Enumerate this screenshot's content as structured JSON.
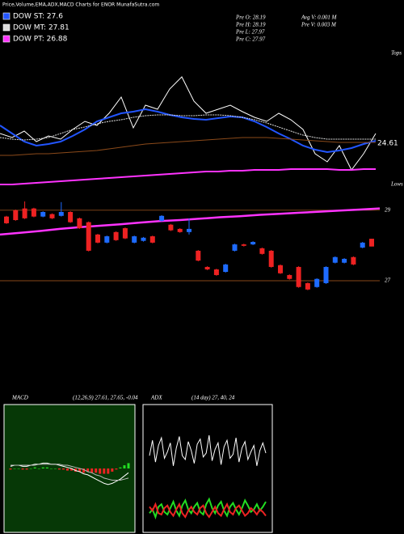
{
  "header": {
    "title": "Price,Volume,EMA,ADX,MACD Charts for ENOR MunafaSutra.com",
    "stats": [
      "Pre  O: 28.19",
      "Pre  H: 28.19",
      "Pre  L: 27.97",
      "Pre  C: 27.97",
      "Avg V: 0.001 M",
      "Pre  V: 0.003 M"
    ]
  },
  "chart_data": [
    {
      "type": "line",
      "ylim": [
        -15,
        140
      ],
      "annotation": "24.61",
      "tops_label": "Tops",
      "lows_label": "Lows",
      "series": [
        {
          "color": "#ffffff",
          "values": [
            55,
            50,
            58,
            45,
            52,
            48,
            60,
            70,
            65,
            80,
            100,
            62,
            90,
            85,
            110,
            125,
            95,
            80,
            85,
            90,
            82,
            75,
            70,
            80,
            72,
            60,
            30,
            20,
            40,
            10,
            30,
            55
          ]
        },
        {
          "name": "DOW ST: 27.6",
          "color": "#2255ff",
          "values": [
            65,
            55,
            45,
            40,
            42,
            45,
            52,
            60,
            70,
            75,
            80,
            82,
            85,
            82,
            78,
            75,
            73,
            72,
            74,
            76,
            75,
            70,
            63,
            55,
            48,
            40,
            35,
            32,
            34,
            37,
            42,
            46
          ]
        },
        {
          "name": "DOW MT: 27.81",
          "color": "#dddddd",
          "values": [
            50,
            48,
            47,
            48,
            50,
            55,
            60,
            63,
            67,
            70,
            72,
            75,
            77,
            78,
            78,
            77,
            77,
            78,
            78,
            77,
            75,
            72,
            68,
            63,
            58,
            53,
            50,
            48,
            48,
            48,
            48,
            48
          ]
        },
        {
          "color": "#8b4a1a",
          "values": [
            28,
            28,
            29,
            30,
            30,
            31,
            32,
            33,
            34,
            36,
            38,
            40,
            42,
            43,
            44,
            45,
            46,
            47,
            48,
            49,
            50,
            50,
            50,
            49,
            48,
            47,
            46,
            45,
            44,
            44,
            44,
            44
          ]
        },
        {
          "name": "DOW PT: 26.88",
          "color": "#ff33ff",
          "values": [
            -8,
            -8,
            -7,
            -6,
            -5,
            -4,
            -3,
            -2,
            -1,
            0,
            1,
            2,
            3,
            4,
            5,
            6,
            7,
            8,
            8,
            9,
            9,
            10,
            10,
            10,
            11,
            11,
            11,
            11,
            10,
            10,
            11,
            11
          ]
        }
      ]
    },
    {
      "type": "candlestick",
      "ylim": [
        26.47,
        29.57
      ],
      "yticks": [
        29,
        27
      ],
      "up_color": "#1e6bff",
      "down_color": "#ee2222",
      "open": [
        28.82,
        29.0,
        29.05,
        29.05,
        28.82,
        28.89,
        28.84,
        28.95,
        28.77,
        28.66,
        28.31,
        28.08,
        28.38,
        28.49,
        28.08,
        28.13,
        28.26,
        28.7,
        28.59,
        28.47,
        28.38,
        27.85,
        27.39,
        27.32,
        27.25,
        27.85,
        28.03,
        28.03,
        27.92,
        27.85,
        27.44,
        27.16,
        27.39,
        26.93,
        26.82,
        26.93,
        27.51,
        27.51,
        27.67,
        27.94,
        28.19
      ],
      "high": [
        28.84,
        29.02,
        29.25,
        29.07,
        28.97,
        28.91,
        29.23,
        28.97,
        28.79,
        28.68,
        28.33,
        28.28,
        28.4,
        28.51,
        28.28,
        28.24,
        28.28,
        28.86,
        28.61,
        28.49,
        28.77,
        27.87,
        27.41,
        27.34,
        27.48,
        28.05,
        28.05,
        28.12,
        27.94,
        27.87,
        27.46,
        27.18,
        27.41,
        26.95,
        27.07,
        27.41,
        27.69,
        27.64,
        27.69,
        28.1,
        28.19
      ],
      "low": [
        28.61,
        28.7,
        28.75,
        28.8,
        28.8,
        28.75,
        28.82,
        28.64,
        28.47,
        27.83,
        28.06,
        28.06,
        28.13,
        28.18,
        28.06,
        28.11,
        28.06,
        28.68,
        28.41,
        28.36,
        28.31,
        27.55,
        27.3,
        27.14,
        27.23,
        27.83,
        27.97,
        28.01,
        27.74,
        27.37,
        27.19,
        27.03,
        26.8,
        26.73,
        26.8,
        26.91,
        27.49,
        27.49,
        27.44,
        27.92,
        27.97
      ],
      "close": [
        28.63,
        28.72,
        28.77,
        28.82,
        28.95,
        28.77,
        28.95,
        28.66,
        28.49,
        27.85,
        28.08,
        28.26,
        28.15,
        28.2,
        28.26,
        28.22,
        28.08,
        28.84,
        28.43,
        28.38,
        28.47,
        27.57,
        27.32,
        27.16,
        27.46,
        28.03,
        27.99,
        28.1,
        27.76,
        27.39,
        27.21,
        27.05,
        26.82,
        26.75,
        27.05,
        27.39,
        27.67,
        27.62,
        27.46,
        28.08,
        27.97
      ],
      "series": [
        {
          "color": "#ff33ff",
          "values": [
            28.31,
            28.36,
            28.41,
            28.47,
            28.52,
            28.56,
            28.6,
            28.65,
            28.69,
            28.72,
            28.76,
            28.8,
            28.83,
            28.87,
            28.9,
            28.93,
            28.96,
            28.99,
            29.02,
            29.05
          ]
        }
      ]
    },
    {
      "type": "macd",
      "title": "MACD",
      "subtitle": "(12,26,9) 27.61, 27.65, -0.04",
      "ylim": [
        -0.6,
        0.6
      ],
      "background": "#063806",
      "series": [
        {
          "color": "#ffffff",
          "values": [
            0.02,
            0.03,
            0.03,
            0.02,
            0.02,
            0.03,
            0.04,
            0.04,
            0.05,
            0.05,
            0.04,
            0.04,
            0.03,
            0.02,
            0.01,
            0.0,
            -0.02,
            -0.03,
            -0.05,
            -0.06,
            -0.08,
            -0.1,
            -0.12,
            -0.14,
            -0.15,
            -0.14,
            -0.12,
            -0.1,
            -0.07,
            -0.04
          ]
        },
        {
          "color": "#bbbbbb",
          "values": [
            0.03,
            0.03,
            0.03,
            0.03,
            0.03,
            0.03,
            0.03,
            0.04,
            0.04,
            0.04,
            0.04,
            0.04,
            0.04,
            0.03,
            0.03,
            0.02,
            0.01,
            0.0,
            -0.01,
            -0.03,
            -0.04,
            -0.06,
            -0.07,
            -0.09,
            -0.1,
            -0.11,
            -0.11,
            -0.11,
            -0.1,
            -0.09
          ]
        }
      ],
      "histogram": {
        "up_color": "#22dd22",
        "down_color": "#ee2222",
        "values": [
          -0.01,
          0,
          0,
          -0.01,
          -0.01,
          0,
          0.01,
          0,
          0.01,
          0.01,
          0,
          0,
          -0.01,
          -0.01,
          -0.02,
          -0.02,
          -0.03,
          -0.03,
          -0.04,
          -0.03,
          -0.04,
          -0.04,
          -0.05,
          -0.05,
          -0.05,
          -0.03,
          -0.01,
          0.01,
          0.03,
          0.05
        ]
      }
    },
    {
      "type": "adx",
      "title": "ADX",
      "subtitle": "(14 day) 27, 40, 24",
      "ylim": [
        0,
        100
      ],
      "background": "#000000",
      "series": [
        {
          "color": "#ffffff",
          "values": [
            60,
            72,
            55,
            68,
            74,
            58,
            63,
            70,
            52,
            66,
            75,
            60,
            57,
            71,
            64,
            54,
            69,
            73,
            59,
            62,
            76,
            56,
            65,
            70,
            53,
            67,
            72,
            58,
            61,
            74,
            55,
            66,
            71,
            57,
            63,
            68,
            52,
            64,
            70,
            62
          ]
        },
        {
          "color": "#22dd22",
          "values": [
            15,
            18,
            12,
            20,
            22,
            16,
            14,
            19,
            24,
            17,
            13,
            21,
            25,
            18,
            15,
            20,
            23,
            16,
            14,
            22,
            26,
            19,
            15,
            21,
            24,
            17,
            13,
            20,
            23,
            18,
            14,
            19,
            25,
            21,
            16,
            18,
            22,
            17,
            20,
            24
          ]
        },
        {
          "color": "#ee2222",
          "values": [
            20,
            17,
            22,
            15,
            14,
            19,
            21,
            16,
            13,
            18,
            22,
            15,
            12,
            17,
            20,
            16,
            14,
            19,
            21,
            15,
            12,
            16,
            20,
            15,
            13,
            18,
            22,
            16,
            14,
            19,
            21,
            17,
            13,
            15,
            19,
            17,
            14,
            18,
            16,
            13
          ]
        }
      ]
    }
  ]
}
